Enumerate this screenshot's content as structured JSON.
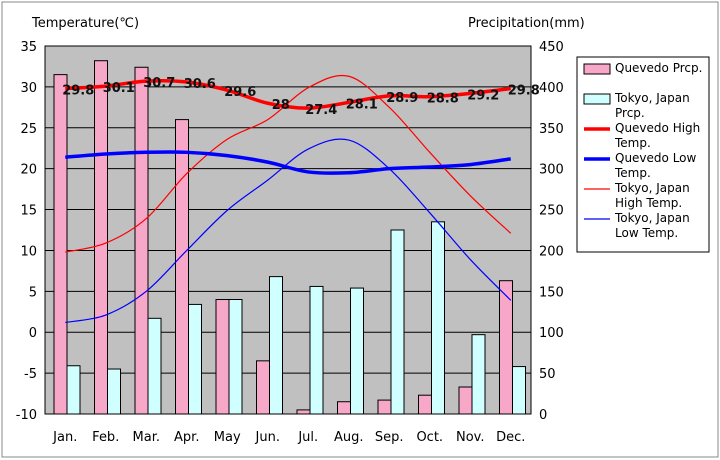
{
  "chart_data": {
    "type": "bar+line",
    "title_left": "Temperature(℃)",
    "title_right": "Precipitation(mm)",
    "categories": [
      "Jan.",
      "Feb.",
      "Mar.",
      "Apr.",
      "May",
      "Jun.",
      "Jul.",
      "Aug.",
      "Sep.",
      "Oct.",
      "Nov.",
      "Dec."
    ],
    "ylim_left": [
      -10,
      35
    ],
    "ylim_right": [
      0,
      450
    ],
    "yticks_left": [
      "35",
      "30",
      "25",
      "20",
      "15",
      "10",
      "5",
      "0",
      "-5",
      "-10"
    ],
    "yticks_right": [
      "450",
      "400",
      "350",
      "300",
      "250",
      "200",
      "150",
      "100",
      "50",
      "0"
    ],
    "bar_series": [
      {
        "name": "Quevedo Prcp.",
        "color": "#f7a8c8",
        "values": [
          415,
          432,
          424,
          360,
          140,
          65,
          5,
          15,
          17,
          23,
          33,
          163
        ]
      },
      {
        "name": "Tokyo, Japan Prcp.",
        "color": "#cfffff",
        "values": [
          59,
          55,
          117,
          134,
          140,
          168,
          156,
          154,
          225,
          235,
          97,
          58
        ]
      }
    ],
    "line_series": [
      {
        "name": "Quevedo High Temp.",
        "color": "#ff0000",
        "values": [
          29.8,
          30.1,
          30.7,
          30.6,
          29.6,
          28,
          27.4,
          28.1,
          28.9,
          28.8,
          29.2,
          29.8
        ],
        "labels": [
          "29.8",
          "30.1",
          "30.7",
          "30.6",
          "29.6",
          "28",
          "27.4",
          "28.1",
          "28.9",
          "28.8",
          "29.2",
          "29.8"
        ]
      },
      {
        "name": "Quevedo Low Temp.",
        "color": "#0000ff",
        "values": [
          21.4,
          21.8,
          22,
          22,
          21.6,
          20.8,
          19.6,
          19.5,
          20,
          20.2,
          20.5,
          21.2
        ]
      },
      {
        "name": "Tokyo, Japan High Temp.",
        "color": "#ff0000",
        "values": [
          9.8,
          10.9,
          13.9,
          19.4,
          23.6,
          26.0,
          29.9,
          31.3,
          27.5,
          22.0,
          16.7,
          12.1
        ]
      },
      {
        "name": "Tokyo, Japan Low Temp.",
        "color": "#0000ff",
        "values": [
          1.2,
          2.1,
          5.0,
          10.0,
          14.9,
          18.6,
          22.4,
          23.5,
          20.0,
          14.6,
          8.9,
          3.9
        ]
      }
    ],
    "legend": [
      {
        "kind": "bar",
        "color": "#f7a8c8",
        "label": "Quevedo Prcp."
      },
      {
        "kind": "bar",
        "color": "#cfffff",
        "label": "Tokyo, Japan Prcp."
      },
      {
        "kind": "line-thick",
        "color": "#ff0000",
        "label": "Quevedo High Temp."
      },
      {
        "kind": "line-thick",
        "color": "#0000ff",
        "label": "Quevedo Low Temp."
      },
      {
        "kind": "line-thin",
        "color": "#ff0000",
        "label": "Tokyo, Japan High Temp."
      },
      {
        "kind": "line-thin",
        "color": "#0000ff",
        "label": "Tokyo, Japan Low Temp."
      }
    ]
  }
}
